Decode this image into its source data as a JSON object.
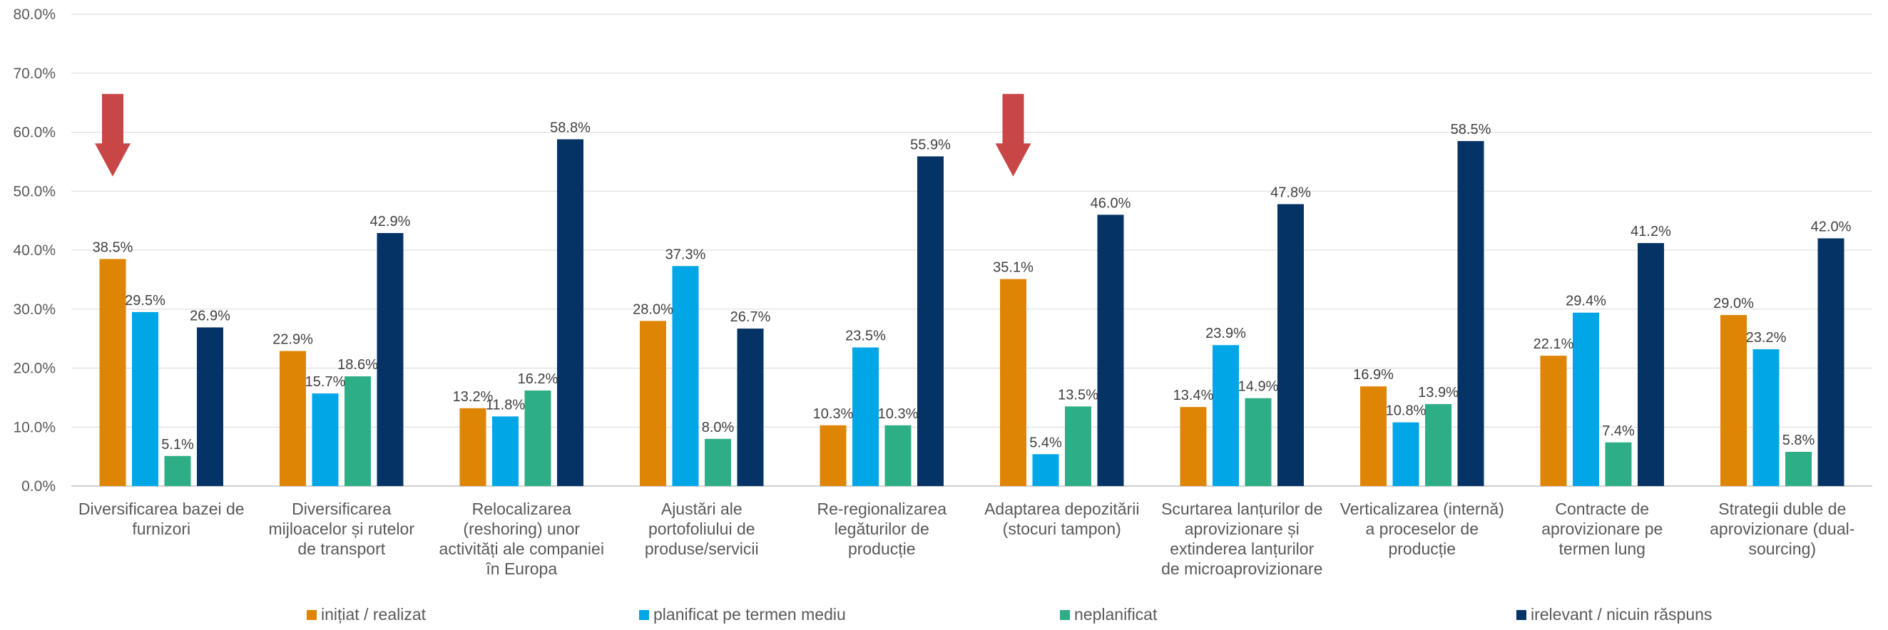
{
  "chart_data": {
    "type": "bar",
    "ylim": [
      0,
      80
    ],
    "y_ticks": [
      "0.0%",
      "10.0%",
      "20.0%",
      "30.0%",
      "40.0%",
      "50.0%",
      "60.0%",
      "70.0%",
      "80.0%"
    ],
    "grid": true,
    "legend_position": "bottom",
    "categories": [
      [
        "Diversificarea bazei de",
        "furnizori"
      ],
      [
        "Diversificarea",
        "mijloacelor și rutelor",
        "de transport"
      ],
      [
        "Relocalizarea",
        "(reshoring) unor",
        "activități ale companiei",
        "în Europa"
      ],
      [
        "Ajustări ale",
        "portofoliului de",
        "produse/servicii"
      ],
      [
        "Re-regionalizarea",
        "legăturilor de",
        "producție"
      ],
      [
        "Adaptarea depozitării",
        "(stocuri tampon)"
      ],
      [
        "Scurtarea lanțurilor de",
        "aprovizionare și",
        "extinderea lanțurilor",
        "de microaprovizionare"
      ],
      [
        "Verticalizarea (internă)",
        "a proceselor de",
        "producție"
      ],
      [
        "Contracte de",
        "aprovizionare pe",
        "termen lung"
      ],
      [
        "Strategii duble de",
        "aprovizionare (dual-",
        "sourcing)"
      ]
    ],
    "series": [
      {
        "name": "inițiat / realizat",
        "color": "#DE8505",
        "values": [
          38.5,
          22.9,
          13.2,
          28.0,
          10.3,
          35.1,
          13.4,
          16.9,
          22.1,
          29.0
        ],
        "labels": [
          "38.5%",
          "22.9%",
          "13.2%",
          "28.0%",
          "10.3%",
          "35.1%",
          "13.4%",
          "16.9%",
          "22.1%",
          "29.0%"
        ]
      },
      {
        "name": "planificat pe termen mediu",
        "color": "#00A6E6",
        "values": [
          29.5,
          15.7,
          11.8,
          37.3,
          23.5,
          5.4,
          23.9,
          10.8,
          29.4,
          23.2
        ],
        "labels": [
          "29.5%",
          "15.7%",
          "11.8%",
          "37.3%",
          "23.5%",
          "5.4%",
          "23.9%",
          "10.8%",
          "29.4%",
          "23.2%"
        ]
      },
      {
        "name": "neplanificat",
        "color": "#2EAE86",
        "values": [
          5.1,
          18.6,
          16.2,
          8.0,
          10.3,
          13.5,
          14.9,
          13.9,
          7.4,
          5.8
        ],
        "labels": [
          "5.1%",
          "18.6%",
          "16.2%",
          "8.0%",
          "10.3%",
          "13.5%",
          "14.9%",
          "13.9%",
          "7.4%",
          "5.8%"
        ]
      },
      {
        "name": "irelevant / nicuin răspuns",
        "color": "#063366",
        "values": [
          26.9,
          42.9,
          58.8,
          26.7,
          55.9,
          46.0,
          47.8,
          58.5,
          41.2,
          42.0
        ],
        "labels": [
          "26.9%",
          "42.9%",
          "58.8%",
          "26.7%",
          "55.9%",
          "46.0%",
          "47.8%",
          "58.5%",
          "41.2%",
          "42.0%"
        ]
      }
    ],
    "annotations": {
      "arrows": {
        "color": "#C94646",
        "categories": [
          0,
          5
        ],
        "from_value": 66.5,
        "to_value": 52.5,
        "shape": "down-arrow"
      }
    }
  }
}
